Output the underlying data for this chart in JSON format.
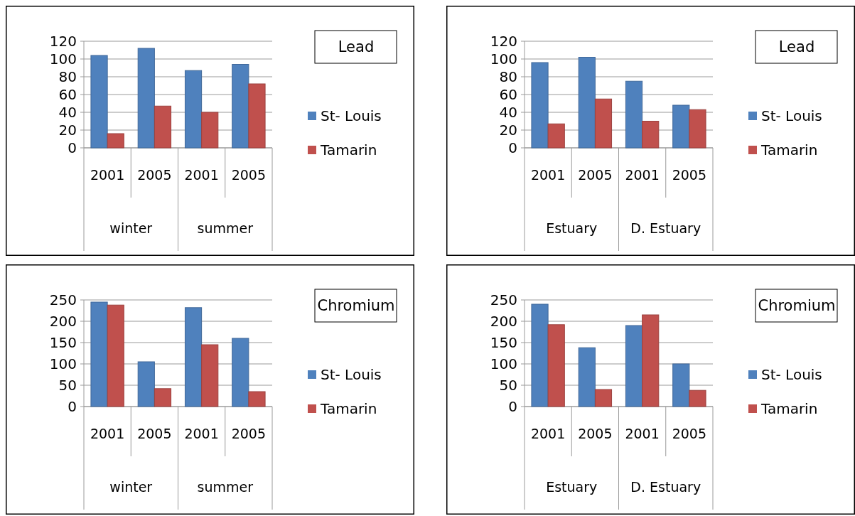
{
  "chart_data": [
    {
      "type": "bar",
      "legend_title": "Lead",
      "categories": [
        "2001",
        "2005",
        "2001",
        "2005"
      ],
      "annotations": [
        "winter",
        "summer"
      ],
      "series": [
        {
          "name": "St- Louis",
          "color": "#4f81bd",
          "values": [
            104,
            112,
            87,
            94
          ]
        },
        {
          "name": "Tamarin",
          "color": "#c0504d",
          "values": [
            16,
            47,
            40,
            72
          ]
        }
      ],
      "ylim": [
        0,
        120
      ],
      "yticks": [
        0,
        20,
        40,
        60,
        80,
        100,
        120
      ],
      "grid": "y",
      "legend": "right"
    },
    {
      "type": "bar",
      "legend_title": "Lead",
      "categories": [
        "2001",
        "2005",
        "2001",
        "2005"
      ],
      "annotations": [
        "Estuary",
        "D. Estuary"
      ],
      "series": [
        {
          "name": "St- Louis",
          "color": "#4f81bd",
          "values": [
            96,
            102,
            75,
            48
          ]
        },
        {
          "name": "Tamarin",
          "color": "#c0504d",
          "values": [
            27,
            55,
            30,
            43
          ]
        }
      ],
      "ylim": [
        0,
        120
      ],
      "yticks": [
        0,
        20,
        40,
        60,
        80,
        100,
        120
      ],
      "grid": "y",
      "legend": "right"
    },
    {
      "type": "bar",
      "legend_title": "Chromium",
      "categories": [
        "2001",
        "2005",
        "2001",
        "2005"
      ],
      "annotations": [
        "winter",
        "summer"
      ],
      "series": [
        {
          "name": "St- Louis",
          "color": "#4f81bd",
          "values": [
            245,
            105,
            232,
            160
          ]
        },
        {
          "name": "Tamarin",
          "color": "#c0504d",
          "values": [
            238,
            42,
            145,
            35
          ]
        }
      ],
      "ylim": [
        0,
        250
      ],
      "yticks": [
        0,
        50,
        100,
        150,
        200,
        250
      ],
      "grid": "y",
      "legend": "right"
    },
    {
      "type": "bar",
      "legend_title": "Chromium",
      "categories": [
        "2001",
        "2005",
        "2001",
        "2005"
      ],
      "annotations": [
        "Estuary",
        "D. Estuary"
      ],
      "series": [
        {
          "name": "St- Louis",
          "color": "#4f81bd",
          "values": [
            240,
            138,
            190,
            100
          ]
        },
        {
          "name": "Tamarin",
          "color": "#c0504d",
          "values": [
            192,
            40,
            215,
            38
          ]
        }
      ],
      "ylim": [
        0,
        250
      ],
      "yticks": [
        0,
        50,
        100,
        150,
        200,
        250
      ],
      "grid": "y",
      "legend": "right"
    }
  ]
}
